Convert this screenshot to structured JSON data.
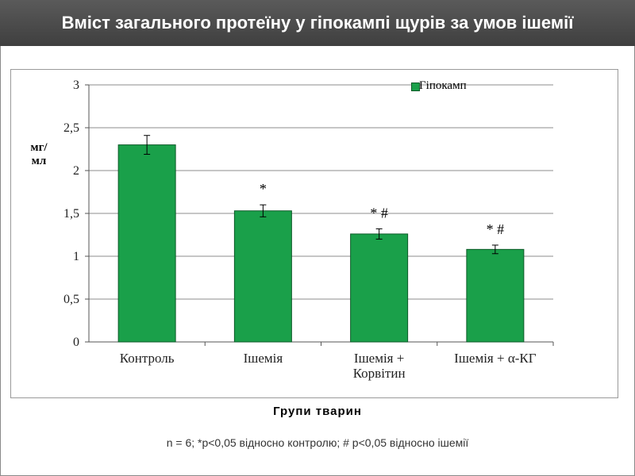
{
  "title": "Вміст загального протеїну у гіпокампі щурів за умов ішемії",
  "footnote": "n = 6; *p<0,05 відносно контролю; # p<0,05 відносно ішемії",
  "colors": {
    "bar": "#1aa04a",
    "bar_edge": "#0d5a28",
    "header": "#474747"
  },
  "chart_data": {
    "type": "bar",
    "categories": [
      "Контроль",
      "Ішемія",
      "Ішемія + Корвітин",
      "Ішемія + α-КГ"
    ],
    "series": [
      {
        "name": "Гіпокамп",
        "values": [
          2.3,
          1.53,
          1.26,
          1.08
        ],
        "errors": [
          0.11,
          0.07,
          0.06,
          0.05
        ]
      }
    ],
    "annotations": [
      "",
      "*",
      "* #",
      "* #"
    ],
    "ylabel": "мг/мл",
    "xlabel": "Групи тварин",
    "ylim": [
      0,
      3
    ],
    "yticks": [
      "0",
      "0,5",
      "1",
      "1,5",
      "2",
      "2,5",
      "3"
    ],
    "yticks_values": [
      0,
      0.5,
      1,
      1.5,
      2,
      2.5,
      3
    ],
    "grid": true,
    "legend": "top-right"
  }
}
